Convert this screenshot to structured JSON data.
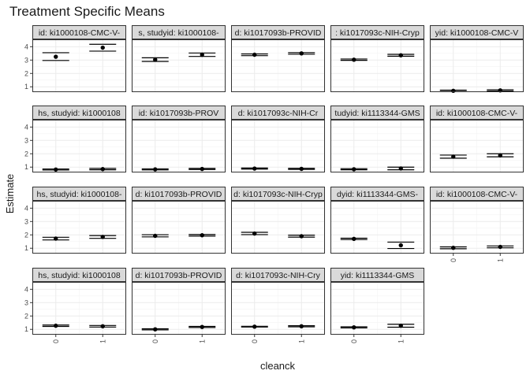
{
  "chart_data": {
    "type": "errorbar",
    "title": "Treatment Specific Means",
    "xlabel": "cleanck",
    "ylabel": "Estimate",
    "x_categories": [
      "0",
      "1"
    ],
    "y_ticks": [
      1,
      2,
      3,
      4
    ],
    "ylim": [
      0.6,
      4.55
    ],
    "grid": true,
    "panels": [
      {
        "label": "id: ki1000108-CMC-V-",
        "points": [
          {
            "x": "0",
            "y": 3.25,
            "low": 2.97,
            "high": 3.55
          },
          {
            "x": "1",
            "y": 3.93,
            "low": 3.67,
            "high": 4.18
          }
        ]
      },
      {
        "label": "s, studyid: ki1000108-",
        "points": [
          {
            "x": "0",
            "y": 3.03,
            "low": 2.9,
            "high": 3.17
          },
          {
            "x": "1",
            "y": 3.4,
            "low": 3.27,
            "high": 3.53
          }
        ]
      },
      {
        "label": "d: ki1017093b-PROVID",
        "points": [
          {
            "x": "0",
            "y": 3.4,
            "low": 3.33,
            "high": 3.46
          },
          {
            "x": "1",
            "y": 3.5,
            "low": 3.44,
            "high": 3.56
          }
        ]
      },
      {
        "label": ": ki1017093c-NIH-Cryp",
        "points": [
          {
            "x": "0",
            "y": 3.03,
            "low": 2.98,
            "high": 3.08
          },
          {
            "x": "1",
            "y": 3.36,
            "low": 3.29,
            "high": 3.43
          }
        ]
      },
      {
        "label": "yid: ki1000108-CMC-V",
        "points": [
          {
            "x": "0",
            "y": 0.7,
            "low": 0.65,
            "high": 0.75
          },
          {
            "x": "1",
            "y": 0.73,
            "low": 0.68,
            "high": 0.78
          }
        ]
      },
      {
        "label": "hs, studyid: ki1000108",
        "points": [
          {
            "x": "0",
            "y": 0.82,
            "low": 0.78,
            "high": 0.86
          },
          {
            "x": "1",
            "y": 0.85,
            "low": 0.8,
            "high": 0.9
          }
        ]
      },
      {
        "label": "id: ki1017093b-PROV",
        "points": [
          {
            "x": "0",
            "y": 0.83,
            "low": 0.79,
            "high": 0.87
          },
          {
            "x": "1",
            "y": 0.86,
            "low": 0.82,
            "high": 0.9
          }
        ]
      },
      {
        "label": "d: ki1017093c-NIH-Cr",
        "points": [
          {
            "x": "0",
            "y": 0.89,
            "low": 0.85,
            "high": 0.93
          },
          {
            "x": "1",
            "y": 0.87,
            "low": 0.83,
            "high": 0.91
          }
        ]
      },
      {
        "label": "tudyid: ki1113344-GMS",
        "points": [
          {
            "x": "0",
            "y": 0.84,
            "low": 0.8,
            "high": 0.88
          },
          {
            "x": "1",
            "y": 0.9,
            "low": 0.8,
            "high": 1.0
          }
        ]
      },
      {
        "label": "id: ki1000108-CMC-V-",
        "points": [
          {
            "x": "0",
            "y": 1.78,
            "low": 1.67,
            "high": 1.9
          },
          {
            "x": "1",
            "y": 1.88,
            "low": 1.77,
            "high": 2.0
          }
        ]
      },
      {
        "label": "hs, studyid: ki1000108-",
        "points": [
          {
            "x": "0",
            "y": 1.72,
            "low": 1.62,
            "high": 1.82
          },
          {
            "x": "1",
            "y": 1.85,
            "low": 1.74,
            "high": 1.95
          }
        ]
      },
      {
        "label": "d: ki1017093b-PROVID",
        "points": [
          {
            "x": "0",
            "y": 1.93,
            "low": 1.85,
            "high": 2.01
          },
          {
            "x": "1",
            "y": 1.97,
            "low": 1.91,
            "high": 2.03
          }
        ]
      },
      {
        "label": "d: ki1017093c-NIH-Cryp",
        "points": [
          {
            "x": "0",
            "y": 2.1,
            "low": 2.02,
            "high": 2.19
          },
          {
            "x": "1",
            "y": 1.9,
            "low": 1.83,
            "high": 1.98
          }
        ]
      },
      {
        "label": "dyid: ki1113344-GMS-",
        "points": [
          {
            "x": "0",
            "y": 1.7,
            "low": 1.65,
            "high": 1.75
          },
          {
            "x": "1",
            "y": 1.22,
            "low": 0.98,
            "high": 1.46
          }
        ]
      },
      {
        "label": "id: ki1000108-CMC-V-",
        "points": [
          {
            "x": "0",
            "y": 1.03,
            "low": 0.96,
            "high": 1.1
          },
          {
            "x": "1",
            "y": 1.1,
            "low": 1.03,
            "high": 1.17
          }
        ]
      },
      {
        "label": "hs, studyid: ki1000108",
        "points": [
          {
            "x": "0",
            "y": 1.27,
            "low": 1.22,
            "high": 1.32
          },
          {
            "x": "1",
            "y": 1.23,
            "low": 1.17,
            "high": 1.29
          }
        ]
      },
      {
        "label": "d: ki1017093b-PROVID",
        "points": [
          {
            "x": "0",
            "y": 1.0,
            "low": 0.96,
            "high": 1.04
          },
          {
            "x": "1",
            "y": 1.18,
            "low": 1.14,
            "high": 1.22
          }
        ]
      },
      {
        "label": "d: ki1017093c-NIH-Cry",
        "points": [
          {
            "x": "0",
            "y": 1.2,
            "low": 1.17,
            "high": 1.23
          },
          {
            "x": "1",
            "y": 1.23,
            "low": 1.19,
            "high": 1.27
          }
        ]
      },
      {
        "label": "yid: ki1113344-GMS",
        "points": [
          {
            "x": "0",
            "y": 1.15,
            "low": 1.11,
            "high": 1.19
          },
          {
            "x": "1",
            "y": 1.27,
            "low": 1.16,
            "high": 1.38
          }
        ]
      }
    ]
  }
}
